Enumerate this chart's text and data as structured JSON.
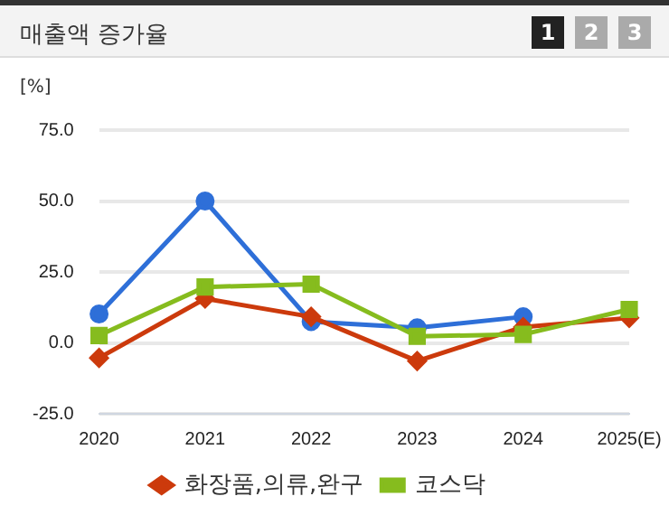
{
  "chart_data": {
    "type": "line",
    "title": "매출액 증가율",
    "ylabel": "[%]",
    "annotations": [
      "1",
      "2",
      "3"
    ],
    "categories": [
      "2020",
      "2021",
      "2022",
      "2023",
      "2024",
      "2025(E)"
    ],
    "series": [
      {
        "color": "#2e6fd8",
        "marker": "circle",
        "values": [
          10.2,
          50.0,
          7.5,
          5.3,
          9.2,
          null
        ]
      },
      {
        "name": "화장품,의류,완구",
        "color": "#cc3a0c",
        "marker": "diamond",
        "values": [
          -5.3,
          15.6,
          9.2,
          -6.4,
          5.6,
          8.8
        ]
      },
      {
        "name": "코스닥",
        "color": "#86bc1e",
        "marker": "square",
        "values": [
          2.6,
          19.7,
          20.7,
          2.3,
          3.0,
          11.8
        ]
      }
    ],
    "ylim": [
      -25,
      75
    ],
    "yticks": [
      {
        "value": -25,
        "label": "-25.0"
      },
      {
        "value": 0,
        "label": "0.0"
      },
      {
        "value": 25,
        "label": "25.0"
      },
      {
        "value": 50,
        "label": "50.0"
      },
      {
        "value": 75,
        "label": "75.0"
      }
    ],
    "grid": "y",
    "legend": "bottom",
    "line_style": "solid"
  }
}
